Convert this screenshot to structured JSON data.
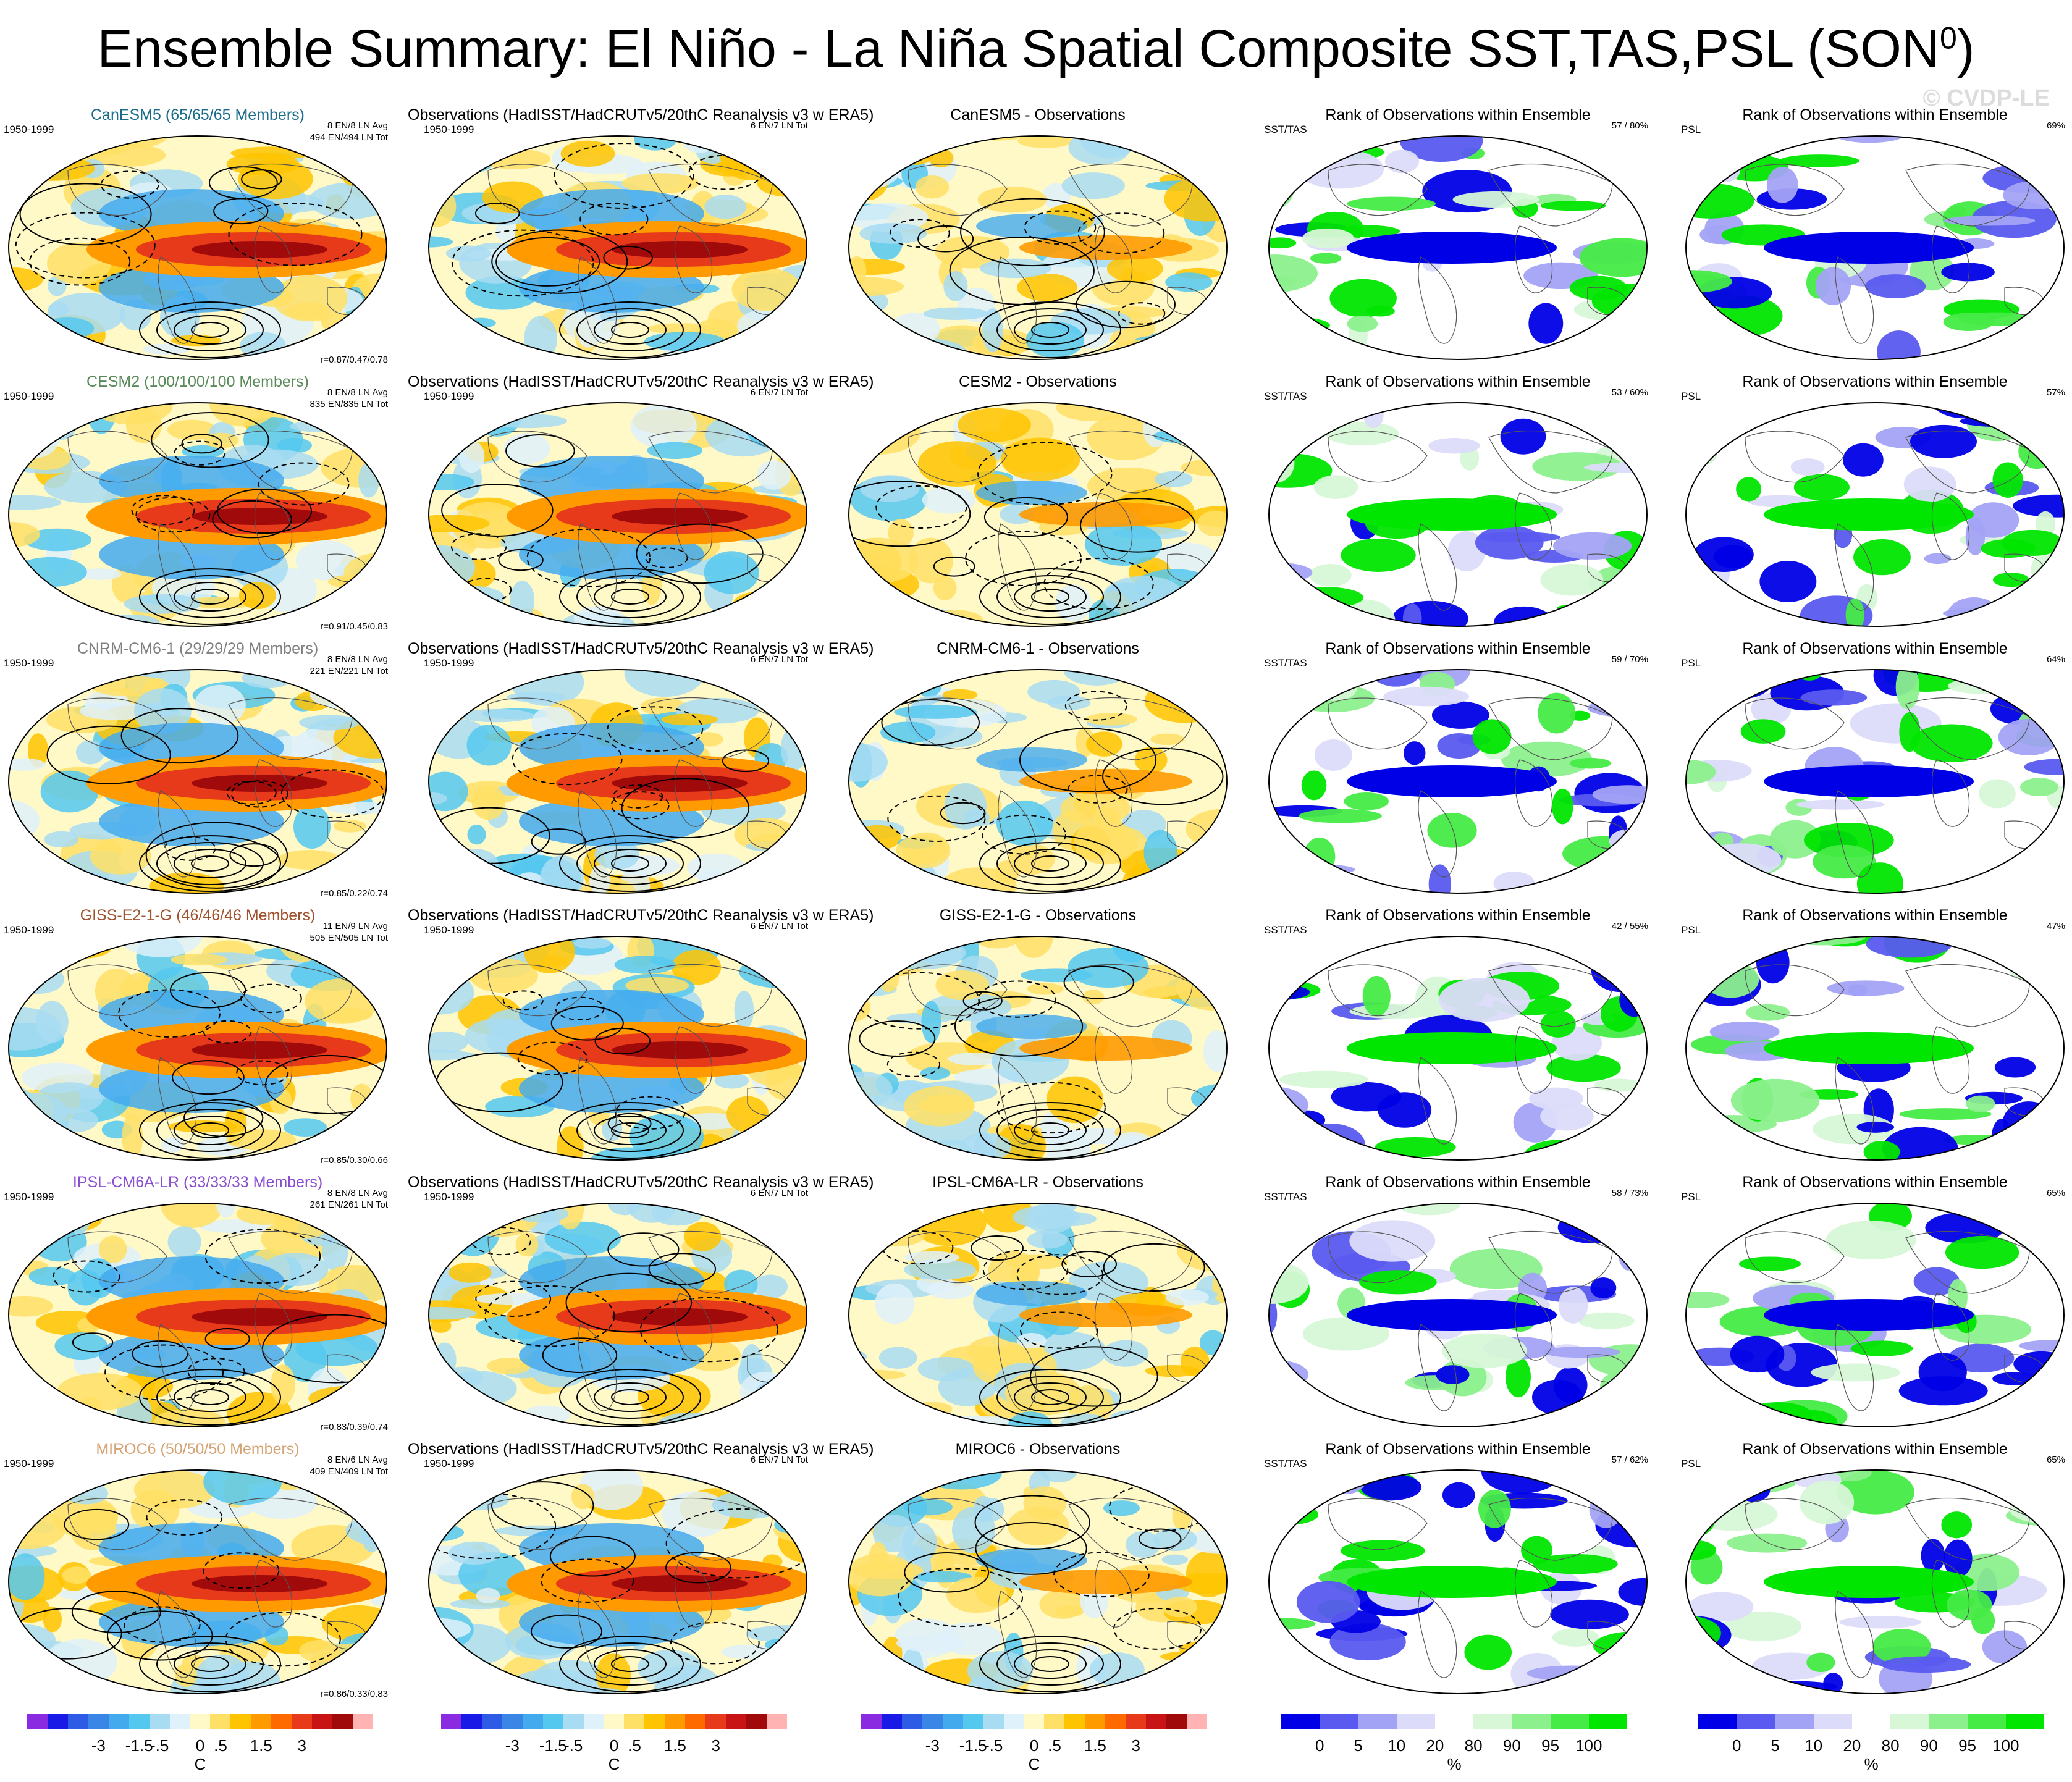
{
  "title": "Ensemble Summary: El Niño - La Niña Spatial Composite SST,TAS,PSL (SON",
  "title_sup": "0",
  "title_tail": ")",
  "watermark": "© CVDP-LE",
  "colors": {
    "temp_scale": [
      "#8a2be2",
      "#1a1ae6",
      "#2e5be6",
      "#3a86e6",
      "#44aaee",
      "#55c8f0",
      "#a8dcf2",
      "#dff1fa",
      "#fff9c8",
      "#ffe066",
      "#ffc400",
      "#ff9a00",
      "#ff6a00",
      "#e63a1a",
      "#c81414",
      "#a00a0a",
      "#ffb3b3"
    ],
    "rank_scale": [
      "#0000e6",
      "#5a5af0",
      "#a3a3f5",
      "#dcdcfa",
      "#ffffff",
      "#d7f7d7",
      "#8cf08c",
      "#46eb46",
      "#00e600"
    ]
  },
  "colorbar_temp": {
    "labels": [
      "-3",
      "-1.5",
      "-.5",
      "0",
      ".5",
      "1.5",
      "3"
    ],
    "unit": "C"
  },
  "colorbar_rank": {
    "labels": [
      "0",
      "5",
      "10",
      "20",
      "80",
      "90",
      "95",
      "100"
    ],
    "unit": "%"
  },
  "rows": [
    {
      "model_title": "CanESM5 (65/65/65 Members)",
      "model_color": "#1a6b8a",
      "period": "1950-1999",
      "ens_stats": [
        "8 EN/8 LN Avg",
        "494 EN/494 LN Tot"
      ],
      "corr": "r=0.87/0.47/0.78",
      "obs_title": "Observations (HadISST/HadCRUTv5/20thC Reanalysis v3 w ERA5)",
      "obs_period": "1950-1999",
      "obs_stats": "6 EN/7 LN Tot",
      "diff_title": "CanESM5 - Observations",
      "rank_title": "Rank of Observations within Ensemble",
      "sst_label": "SST/TAS",
      "sst_score": "57 /  80%",
      "psl_label": "PSL",
      "psl_score": "69%"
    },
    {
      "model_title": "CESM2 (100/100/100 Members)",
      "model_color": "#5a8a5a",
      "period": "1950-1999",
      "ens_stats": [
        "8 EN/8 LN Avg",
        "835 EN/835 LN Tot"
      ],
      "corr": "r=0.91/0.45/0.83",
      "obs_title": "Observations (HadISST/HadCRUTv5/20thC Reanalysis v3 w ERA5)",
      "obs_period": "1950-1999",
      "obs_stats": "6 EN/7 LN Tot",
      "diff_title": "CESM2 - Observations",
      "rank_title": "Rank of Observations within Ensemble",
      "sst_label": "SST/TAS",
      "sst_score": "53 /  60%",
      "psl_label": "PSL",
      "psl_score": "57%"
    },
    {
      "model_title": "CNRM-CM6-1 (29/29/29 Members)",
      "model_color": "#808080",
      "period": "1950-1999",
      "ens_stats": [
        "8 EN/8 LN Avg",
        "221 EN/221 LN Tot"
      ],
      "corr": "r=0.85/0.22/0.74",
      "obs_title": "Observations (HadISST/HadCRUTv5/20thC Reanalysis v3 w ERA5)",
      "obs_period": "1950-1999",
      "obs_stats": "6 EN/7 LN Tot",
      "diff_title": "CNRM-CM6-1 - Observations",
      "rank_title": "Rank of Observations within Ensemble",
      "sst_label": "SST/TAS",
      "sst_score": "59 /  70%",
      "psl_label": "PSL",
      "psl_score": "64%"
    },
    {
      "model_title": "GISS-E2-1-G (46/46/46 Members)",
      "model_color": "#a0522d",
      "period": "1950-1999",
      "ens_stats": [
        "11 EN/9 LN Avg",
        "505 EN/505 LN Tot"
      ],
      "corr": "r=0.85/0.30/0.66",
      "obs_title": "Observations (HadISST/HadCRUTv5/20thC Reanalysis v3 w ERA5)",
      "obs_period": "1950-1999",
      "obs_stats": "6 EN/7 LN Tot",
      "diff_title": "GISS-E2-1-G - Observations",
      "rank_title": "Rank of Observations within Ensemble",
      "sst_label": "SST/TAS",
      "sst_score": "42 /  55%",
      "psl_label": "PSL",
      "psl_score": "47%"
    },
    {
      "model_title": "IPSL-CM6A-LR (33/33/33 Members)",
      "model_color": "#8a4fd0",
      "period": "1950-1999",
      "ens_stats": [
        "8 EN/8 LN Avg",
        "261 EN/261 LN Tot"
      ],
      "corr": "r=0.83/0.39/0.74",
      "obs_title": "Observations (HadISST/HadCRUTv5/20thC Reanalysis v3 w ERA5)",
      "obs_period": "1950-1999",
      "obs_stats": "6 EN/7 LN Tot",
      "diff_title": "IPSL-CM6A-LR - Observations",
      "rank_title": "Rank of Observations within Ensemble",
      "sst_label": "SST/TAS",
      "sst_score": "58 /  73%",
      "psl_label": "PSL",
      "psl_score": "65%"
    },
    {
      "model_title": "MIROC6 (50/50/50 Members)",
      "model_color": "#d4a373",
      "period": "1950-1999",
      "ens_stats": [
        "8 EN/6 LN Avg",
        "409 EN/409 LN Tot"
      ],
      "corr": "r=0.86/0.33/0.83",
      "obs_title": "Observations (HadISST/HadCRUTv5/20thC Reanalysis v3 w ERA5)",
      "obs_period": "1950-1999",
      "obs_stats": "6 EN/7 LN Tot",
      "diff_title": "MIROC6 - Observations",
      "rank_title": "Rank of Observations within Ensemble",
      "sst_label": "SST/TAS",
      "sst_score": "57 /  62%",
      "psl_label": "PSL",
      "psl_score": "65%"
    }
  ],
  "chart_data": {
    "type": "heatmap",
    "layout": "6 rows x 5 columns of global maps",
    "columns": [
      "Model ensemble composite",
      "Observations composite",
      "Model - Observations",
      "Rank SST/TAS",
      "Rank PSL"
    ],
    "temperature_colorbar": {
      "unit": "C",
      "ticks": [
        -3,
        -1.5,
        -0.5,
        0,
        0.5,
        1.5,
        3
      ]
    },
    "rank_colorbar": {
      "unit": "%",
      "ticks": [
        0,
        5,
        10,
        20,
        80,
        90,
        95,
        100
      ]
    },
    "rank_scores": [
      {
        "model": "CanESM5",
        "sst_tas": [
          57,
          80
        ],
        "psl": 69
      },
      {
        "model": "CESM2",
        "sst_tas": [
          53,
          60
        ],
        "psl": 57
      },
      {
        "model": "CNRM-CM6-1",
        "sst_tas": [
          59,
          70
        ],
        "psl": 64
      },
      {
        "model": "GISS-E2-1-G",
        "sst_tas": [
          42,
          55
        ],
        "psl": 47
      },
      {
        "model": "IPSL-CM6A-LR",
        "sst_tas": [
          58,
          73
        ],
        "psl": 65
      },
      {
        "model": "MIROC6",
        "sst_tas": [
          57,
          62
        ],
        "psl": 65
      }
    ],
    "pattern_correlations": [
      {
        "model": "CanESM5",
        "r": [
          0.87,
          0.47,
          0.78
        ]
      },
      {
        "model": "CESM2",
        "r": [
          0.91,
          0.45,
          0.83
        ]
      },
      {
        "model": "CNRM-CM6-1",
        "r": [
          0.85,
          0.22,
          0.74
        ]
      },
      {
        "model": "GISS-E2-1-G",
        "r": [
          0.85,
          0.3,
          0.66
        ]
      },
      {
        "model": "IPSL-CM6A-LR",
        "r": [
          0.83,
          0.39,
          0.74
        ]
      },
      {
        "model": "MIROC6",
        "r": [
          0.86,
          0.33,
          0.83
        ]
      }
    ]
  }
}
